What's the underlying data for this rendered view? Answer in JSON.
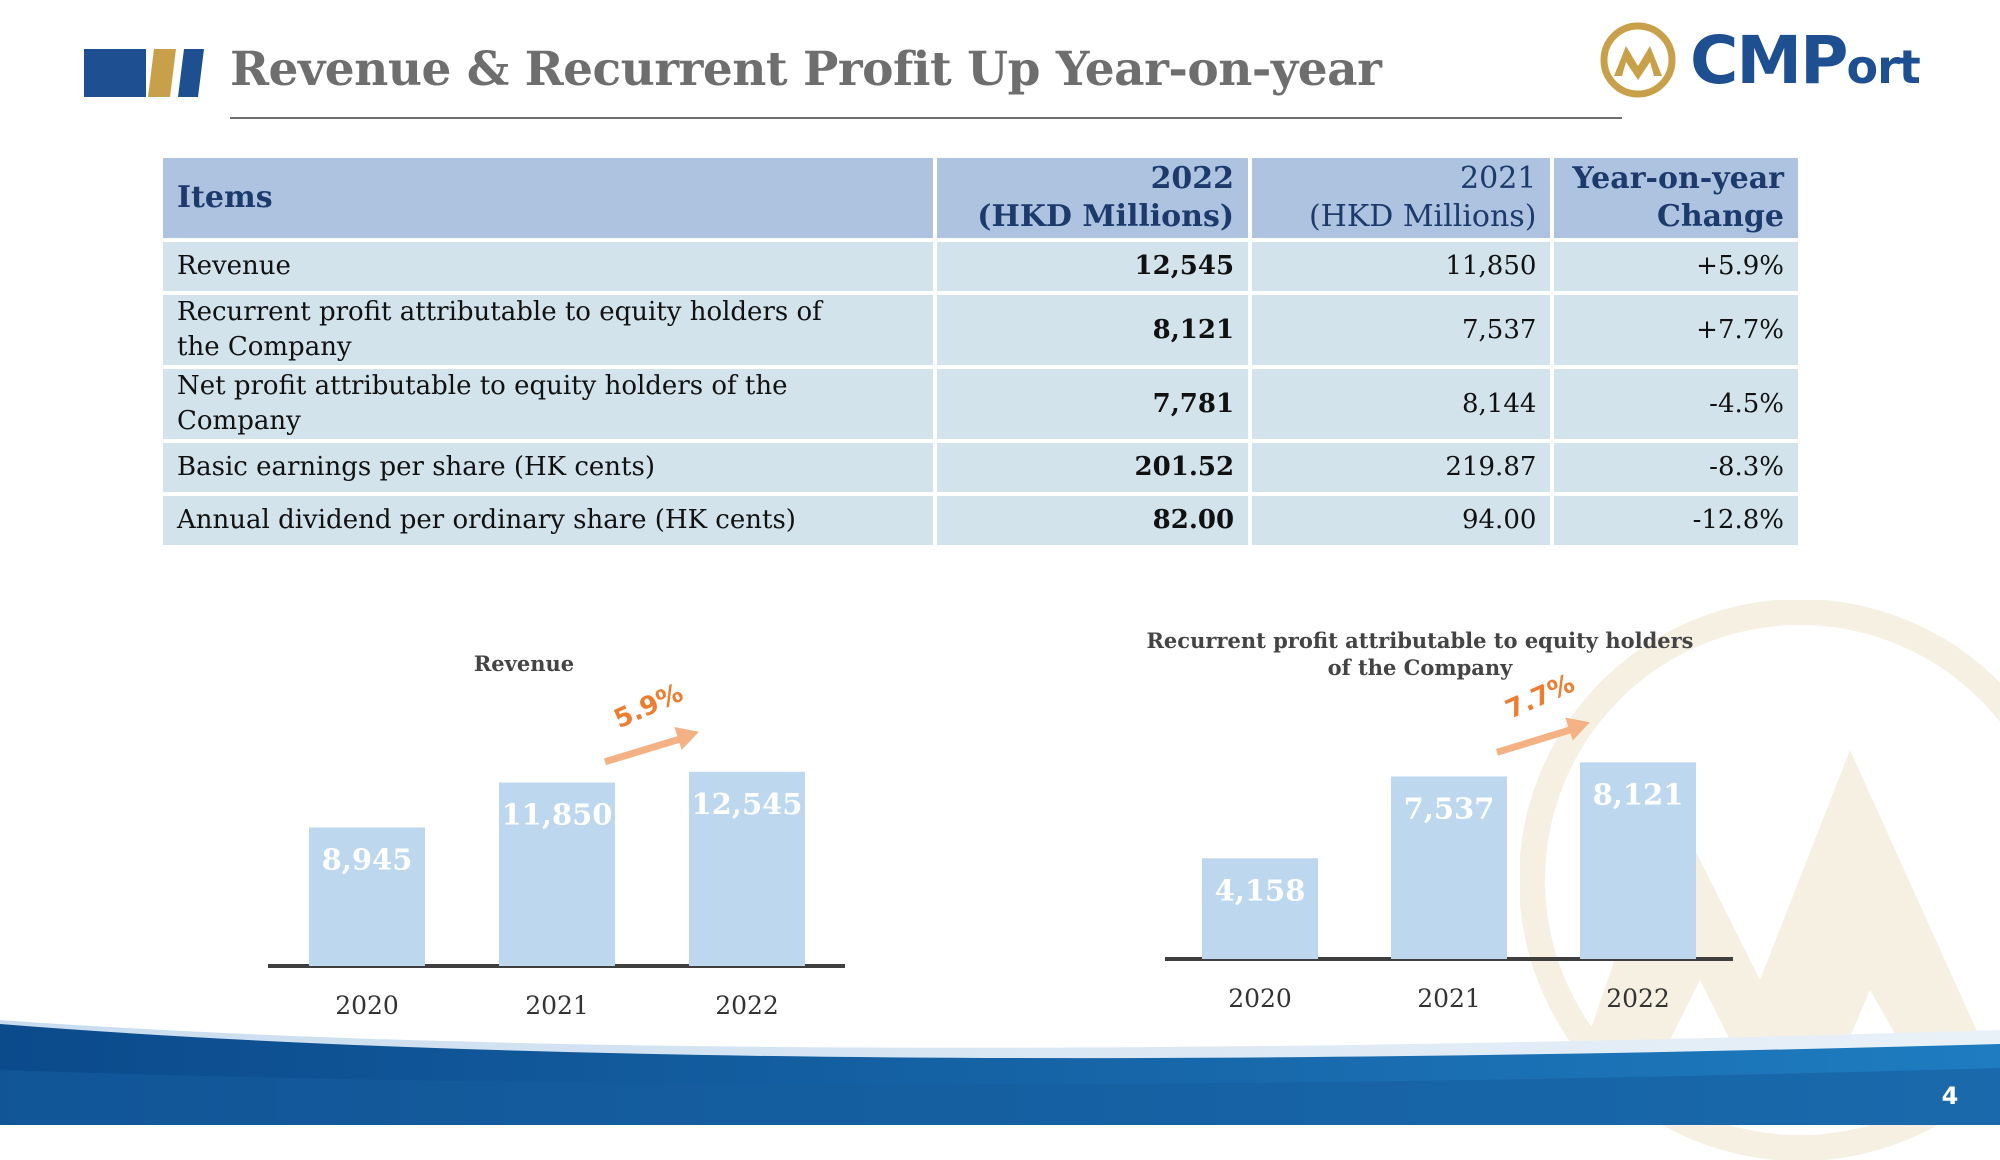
{
  "header": {
    "title": "Revenue & Recurrent Profit Up Year-on-year",
    "logo_text_big": "CMP",
    "logo_text_small": "ort"
  },
  "table": {
    "columns": {
      "items": "Items",
      "y2022_line1": "2022",
      "y2022_line2": "(HKD Millions)",
      "y2021_line1": "2021",
      "y2021_line2": "(HKD Millions)",
      "yoy_line1": "Year-on-year",
      "yoy_line2": "Change"
    },
    "rows": [
      {
        "item": "Revenue",
        "y2022": "12,545",
        "y2021": "11,850",
        "change": "+5.9%"
      },
      {
        "item": "Recurrent profit attributable to equity holders of the Company",
        "y2022": "8,121",
        "y2021": "7,537",
        "change": "+7.7%"
      },
      {
        "item": "Net profit attributable to equity holders of the Company",
        "y2022": "7,781",
        "y2021": "8,144",
        "change": "-4.5%"
      },
      {
        "item": "Basic earnings per share (HK cents)",
        "y2022": "201.52",
        "y2021": "219.87",
        "change": "-8.3%"
      },
      {
        "item": "Annual dividend per ordinary share (HK cents)",
        "y2022": "82.00",
        "y2021": "94.00",
        "change": "-12.8%"
      }
    ]
  },
  "chart_data": [
    {
      "type": "bar",
      "title": "Revenue",
      "categories": [
        "2020",
        "2021",
        "2022"
      ],
      "values": [
        8945,
        11850,
        12545
      ],
      "value_labels": [
        "8,945",
        "11,850",
        "12,545"
      ],
      "growth_label": "5.9%",
      "xlabel": "",
      "ylabel": "",
      "ylim": [
        0,
        13500
      ],
      "grid": false,
      "legend": "none",
      "bar_color": "#bdd7ee",
      "arrow_color": "#f4b183",
      "growth_color": "#ed7d31"
    },
    {
      "type": "bar",
      "title": "Recurrent profit attributable to equity holders of the Company",
      "categories": [
        "2020",
        "2021",
        "2022"
      ],
      "values": [
        4158,
        7537,
        8121
      ],
      "value_labels": [
        "4,158",
        "7,537",
        "8,121"
      ],
      "growth_label": "7.7%",
      "xlabel": "",
      "ylabel": "",
      "ylim": [
        0,
        9000
      ],
      "grid": false,
      "legend": "none",
      "bar_color": "#bdd7ee",
      "arrow_color": "#f4b183",
      "growth_color": "#ed7d31"
    }
  ],
  "footer": {
    "page_number": "4"
  },
  "colors": {
    "navy": "#1d4f91",
    "gold": "#c9a04a",
    "title_gray": "#6e6e6e",
    "table_header": "#aec3e0",
    "table_row": "#d2e3ec"
  }
}
